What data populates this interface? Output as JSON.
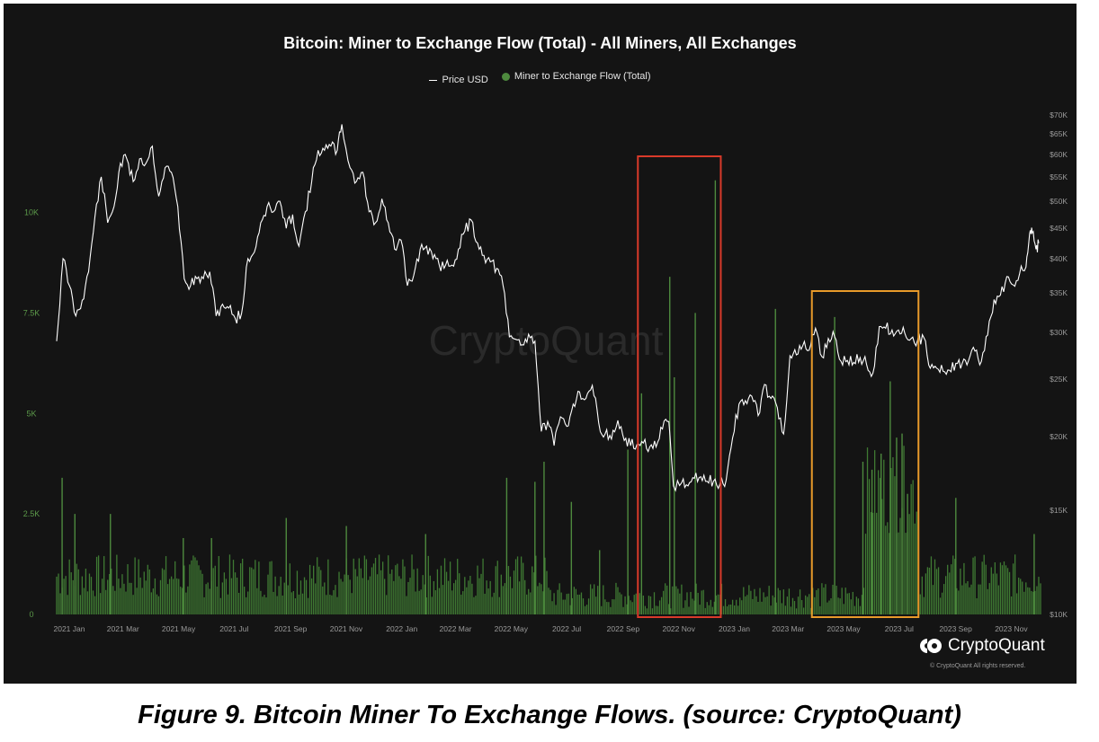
{
  "chart_data": {
    "type": "line",
    "title": "Bitcoin: Miner to Exchange Flow (Total) - All Miners, All Exchanges",
    "legend": [
      {
        "label": "Price USD",
        "color": "#ffffff",
        "marker": "line"
      },
      {
        "label": "Miner to Exchange Flow (Total)",
        "color": "#4e8a3e",
        "marker": "dot"
      }
    ],
    "legend_position": "top-center",
    "grid": false,
    "x_tick_labels": [
      "2021 Jan",
      "2021 Mar",
      "2021 May",
      "2021 Jul",
      "2021 Sep",
      "2021 Nov",
      "2022 Jan",
      "2022 Mar",
      "2022 May",
      "2022 Jul",
      "2022 Sep",
      "2022 Nov",
      "2023 Jan",
      "2023 Mar",
      "2023 May",
      "2023 Jul",
      "2023 Sep",
      "2023 Nov"
    ],
    "y_left_tick_labels": [
      "0",
      "2.5K",
      "5K",
      "7.5K",
      "10K"
    ],
    "y_left_range": [
      0,
      12000
    ],
    "y_right_tick_labels": [
      "$10K",
      "$15K",
      "$20K",
      "$25K",
      "$30K",
      "$35K",
      "$40K",
      "$45K",
      "$50K",
      "$55K",
      "$60K",
      "$65K",
      "$70K"
    ],
    "y_right_range": [
      10000,
      70000
    ],
    "y_right_scale": "log",
    "series": [
      {
        "name": "Price USD",
        "axis": "right",
        "style": "line",
        "points": [
          [
            "2021-01-01",
            29000
          ],
          [
            "2021-01-08",
            40000
          ],
          [
            "2021-01-15",
            36000
          ],
          [
            "2021-01-22",
            32000
          ],
          [
            "2021-01-29",
            34000
          ],
          [
            "2021-02-05",
            38000
          ],
          [
            "2021-02-12",
            47000
          ],
          [
            "2021-02-19",
            55000
          ],
          [
            "2021-02-26",
            46000
          ],
          [
            "2021-03-05",
            49000
          ],
          [
            "2021-03-12",
            58000
          ],
          [
            "2021-03-19",
            59000
          ],
          [
            "2021-03-26",
            54000
          ],
          [
            "2021-04-02",
            59000
          ],
          [
            "2021-04-09",
            58000
          ],
          [
            "2021-04-16",
            62000
          ],
          [
            "2021-04-23",
            51000
          ],
          [
            "2021-04-30",
            57000
          ],
          [
            "2021-05-07",
            56000
          ],
          [
            "2021-05-14",
            49000
          ],
          [
            "2021-05-21",
            37000
          ],
          [
            "2021-05-28",
            36000
          ],
          [
            "2021-06-04",
            37000
          ],
          [
            "2021-06-11",
            37000
          ],
          [
            "2021-06-18",
            38000
          ],
          [
            "2021-06-25",
            32000
          ],
          [
            "2021-07-02",
            33500
          ],
          [
            "2021-07-09",
            33000
          ],
          [
            "2021-07-16",
            31700
          ],
          [
            "2021-07-23",
            32300
          ],
          [
            "2021-07-30",
            40000
          ],
          [
            "2021-08-06",
            41000
          ],
          [
            "2021-08-13",
            46000
          ],
          [
            "2021-08-20",
            49000
          ],
          [
            "2021-08-27",
            48000
          ],
          [
            "2021-09-03",
            50000
          ],
          [
            "2021-09-10",
            45000
          ],
          [
            "2021-09-17",
            47500
          ],
          [
            "2021-09-24",
            42000
          ],
          [
            "2021-10-01",
            48000
          ],
          [
            "2021-10-08",
            54000
          ],
          [
            "2021-10-15",
            61000
          ],
          [
            "2021-10-22",
            61000
          ],
          [
            "2021-10-29",
            62000
          ],
          [
            "2021-11-05",
            61000
          ],
          [
            "2021-11-10",
            67500
          ],
          [
            "2021-11-19",
            57000
          ],
          [
            "2021-11-26",
            54000
          ],
          [
            "2021-12-03",
            56000
          ],
          [
            "2021-12-10",
            48000
          ],
          [
            "2021-12-17",
            46000
          ],
          [
            "2021-12-24",
            50500
          ],
          [
            "2021-12-31",
            46000
          ],
          [
            "2022-01-07",
            41500
          ],
          [
            "2022-01-14",
            43000
          ],
          [
            "2022-01-21",
            36000
          ],
          [
            "2022-01-28",
            37500
          ],
          [
            "2022-02-04",
            41500
          ],
          [
            "2022-02-11",
            42000
          ],
          [
            "2022-02-18",
            40000
          ],
          [
            "2022-02-25",
            39000
          ],
          [
            "2022-03-04",
            39000
          ],
          [
            "2022-03-11",
            39000
          ],
          [
            "2022-03-18",
            41500
          ],
          [
            "2022-03-25",
            44500
          ],
          [
            "2022-04-01",
            46500
          ],
          [
            "2022-04-08",
            42500
          ],
          [
            "2022-04-15",
            40500
          ],
          [
            "2022-04-22",
            39500
          ],
          [
            "2022-04-29",
            38500
          ],
          [
            "2022-05-06",
            36000
          ],
          [
            "2022-05-13",
            29500
          ],
          [
            "2022-05-20",
            29200
          ],
          [
            "2022-05-27",
            28600
          ],
          [
            "2022-06-03",
            29800
          ],
          [
            "2022-06-10",
            29000
          ],
          [
            "2022-06-17",
            20400
          ],
          [
            "2022-06-24",
            21200
          ],
          [
            "2022-07-01",
            19300
          ],
          [
            "2022-07-08",
            21600
          ],
          [
            "2022-07-15",
            20800
          ],
          [
            "2022-07-22",
            22700
          ],
          [
            "2022-07-29",
            23800
          ],
          [
            "2022-08-05",
            23200
          ],
          [
            "2022-08-12",
            24400
          ],
          [
            "2022-08-19",
            21100
          ],
          [
            "2022-08-26",
            20200
          ],
          [
            "2022-09-02",
            19800
          ],
          [
            "2022-09-09",
            21300
          ],
          [
            "2022-09-16",
            19700
          ],
          [
            "2022-09-23",
            19300
          ],
          [
            "2022-09-30",
            19400
          ],
          [
            "2022-10-07",
            19500
          ],
          [
            "2022-10-14",
            19200
          ],
          [
            "2022-10-21",
            19200
          ],
          [
            "2022-10-28",
            20600
          ],
          [
            "2022-11-04",
            21200
          ],
          [
            "2022-11-09",
            16500
          ],
          [
            "2022-11-18",
            16700
          ],
          [
            "2022-11-25",
            16500
          ],
          [
            "2022-12-02",
            17000
          ],
          [
            "2022-12-09",
            17100
          ],
          [
            "2022-12-16",
            16800
          ],
          [
            "2022-12-23",
            16800
          ],
          [
            "2022-12-30",
            16600
          ],
          [
            "2023-01-06",
            16900
          ],
          [
            "2023-01-13",
            19900
          ],
          [
            "2023-01-20",
            22700
          ],
          [
            "2023-01-27",
            23000
          ],
          [
            "2023-02-03",
            23400
          ],
          [
            "2023-02-10",
            21700
          ],
          [
            "2023-02-17",
            24500
          ],
          [
            "2023-02-24",
            23200
          ],
          [
            "2023-03-03",
            22400
          ],
          [
            "2023-03-10",
            20200
          ],
          [
            "2023-03-17",
            27400
          ],
          [
            "2023-03-24",
            27500
          ],
          [
            "2023-03-31",
            28500
          ],
          [
            "2023-04-07",
            28000
          ],
          [
            "2023-04-14",
            30500
          ],
          [
            "2023-04-21",
            27300
          ],
          [
            "2023-04-28",
            29300
          ],
          [
            "2023-05-05",
            29500
          ],
          [
            "2023-05-12",
            26800
          ],
          [
            "2023-05-19",
            26900
          ],
          [
            "2023-05-26",
            26700
          ],
          [
            "2023-06-02",
            27200
          ],
          [
            "2023-06-09",
            26500
          ],
          [
            "2023-06-16",
            25600
          ],
          [
            "2023-06-23",
            30700
          ],
          [
            "2023-06-30",
            30500
          ],
          [
            "2023-07-07",
            30300
          ],
          [
            "2023-07-14",
            30300
          ],
          [
            "2023-07-21",
            29900
          ],
          [
            "2023-07-28",
            29300
          ],
          [
            "2023-08-04",
            29100
          ],
          [
            "2023-08-11",
            29400
          ],
          [
            "2023-08-18",
            26100
          ],
          [
            "2023-08-25",
            26100
          ],
          [
            "2023-09-01",
            25800
          ],
          [
            "2023-09-08",
            25900
          ],
          [
            "2023-09-15",
            26600
          ],
          [
            "2023-09-22",
            26600
          ],
          [
            "2023-09-29",
            26900
          ],
          [
            "2023-10-06",
            27900
          ],
          [
            "2023-10-13",
            26800
          ],
          [
            "2023-10-20",
            29700
          ],
          [
            "2023-10-27",
            34100
          ],
          [
            "2023-11-03",
            34700
          ],
          [
            "2023-11-10",
            37300
          ],
          [
            "2023-11-17",
            36100
          ],
          [
            "2023-11-24",
            37700
          ],
          [
            "2023-12-01",
            38700
          ],
          [
            "2023-12-05",
            44000
          ],
          [
            "2023-12-08",
            44200
          ],
          [
            "2023-12-12",
            41500
          ],
          [
            "2023-12-15",
            42500
          ]
        ]
      },
      {
        "name": "Miner to Exchange Flow (Total)",
        "axis": "left",
        "style": "bar",
        "baseline_range": [
          400,
          1500
        ],
        "spikes": [
          [
            "2021-01-07",
            3400
          ],
          [
            "2021-01-21",
            2500
          ],
          [
            "2021-03-01",
            2500
          ],
          [
            "2021-05-20",
            1900
          ],
          [
            "2021-06-20",
            1900
          ],
          [
            "2021-09-10",
            2400
          ],
          [
            "2021-11-15",
            2200
          ],
          [
            "2022-02-10",
            2000
          ],
          [
            "2022-05-10",
            3400
          ],
          [
            "2022-06-10",
            3300
          ],
          [
            "2022-06-20",
            3800
          ],
          [
            "2022-07-20",
            2800
          ],
          [
            "2022-08-20",
            1600
          ],
          [
            "2022-09-20",
            4100
          ],
          [
            "2022-10-05",
            5500
          ],
          [
            "2022-11-05",
            8400
          ],
          [
            "2022-11-10",
            5900
          ],
          [
            "2022-12-03",
            7500
          ],
          [
            "2022-12-25",
            10800
          ],
          [
            "2023-03-01",
            7600
          ],
          [
            "2023-05-05",
            7400
          ],
          [
            "2023-06-05",
            3800
          ],
          [
            "2023-06-15",
            3600
          ],
          [
            "2023-06-25",
            4000
          ],
          [
            "2023-07-05",
            5800
          ],
          [
            "2023-07-12",
            4400
          ],
          [
            "2023-07-18",
            4500
          ],
          [
            "2023-07-24",
            3000
          ],
          [
            "2023-09-15",
            2900
          ],
          [
            "2023-12-10",
            2000
          ]
        ],
        "dense_period": [
          "2023-06-08",
          "2023-08-03"
        ],
        "dense_range": [
          2000,
          4200
        ]
      }
    ],
    "annotations": [
      {
        "shape": "rectangle",
        "color": "#d93a2a",
        "x_range": [
          "2022-10-01",
          "2022-12-31"
        ]
      },
      {
        "shape": "rectangle",
        "color": "#e89a2a",
        "x_range": [
          "2023-04-10",
          "2023-08-05"
        ]
      }
    ],
    "watermark": "CryptoQuant"
  },
  "branding": {
    "logo_text": "CryptoQuant",
    "copyright": "© CryptoQuant All rights reserved."
  },
  "caption": "Figure 9. Bitcoin Miner To Exchange Flows. (source: CryptoQuant)"
}
